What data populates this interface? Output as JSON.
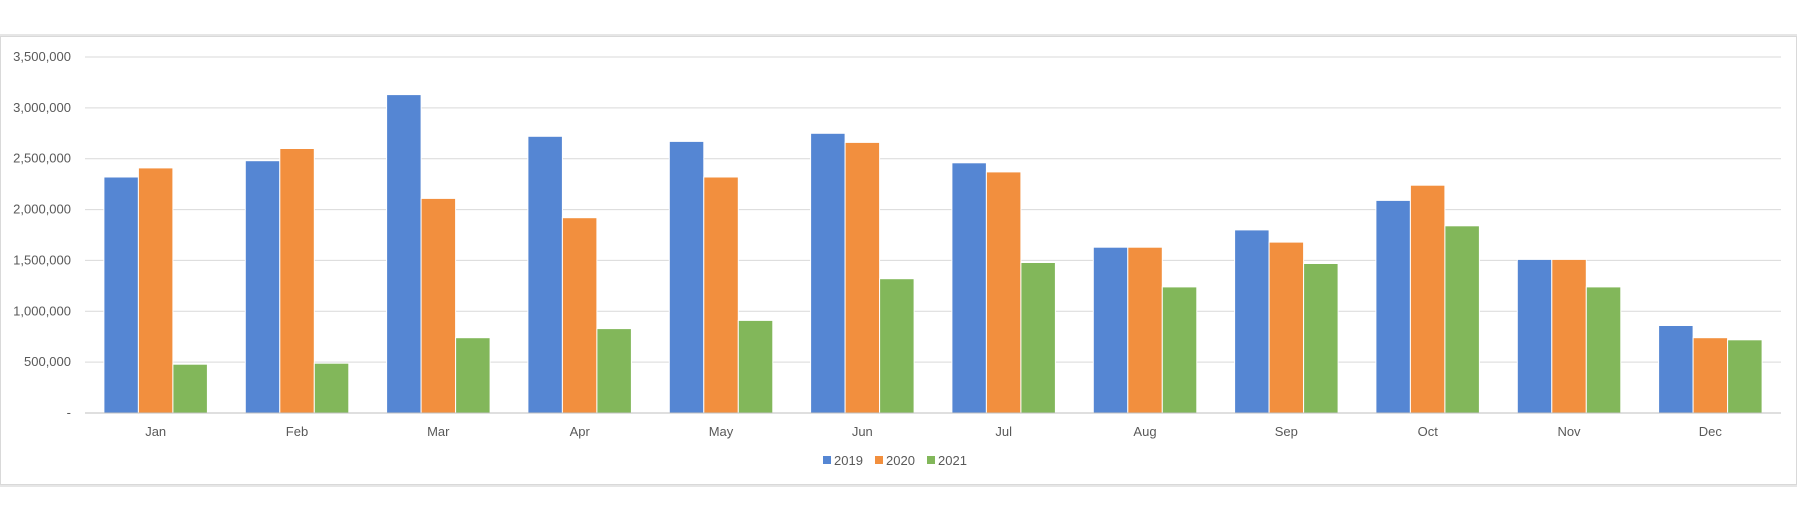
{
  "chart_data": {
    "type": "bar",
    "categories": [
      "Jan",
      "Feb",
      "Mar",
      "Apr",
      "May",
      "Jun",
      "Jul",
      "Aug",
      "Sep",
      "Oct",
      "Nov",
      "Dec"
    ],
    "series": [
      {
        "name": "2019",
        "color": "#5586d3",
        "values": [
          2320000,
          2480000,
          3130000,
          2720000,
          2670000,
          2750000,
          2460000,
          1630000,
          1800000,
          2090000,
          1510000,
          860000
        ]
      },
      {
        "name": "2020",
        "color": "#f28f3e",
        "values": [
          2410000,
          2600000,
          2110000,
          1920000,
          2320000,
          2660000,
          2370000,
          1630000,
          1680000,
          2240000,
          1510000,
          740000
        ]
      },
      {
        "name": "2021",
        "color": "#82b75a",
        "values": [
          480000,
          490000,
          740000,
          830000,
          910000,
          1320000,
          1480000,
          1240000,
          1470000,
          1840000,
          1240000,
          720000
        ]
      }
    ],
    "yticks": [
      "-",
      "500,000",
      "1,000,000",
      "1,500,000",
      "2,000,000",
      "2,500,000",
      "3,000,000",
      "3,500,000"
    ],
    "ylim": [
      0,
      3500000
    ],
    "title": "",
    "xlabel": "",
    "ylabel": "",
    "grid": true,
    "legend_position": "bottom"
  }
}
